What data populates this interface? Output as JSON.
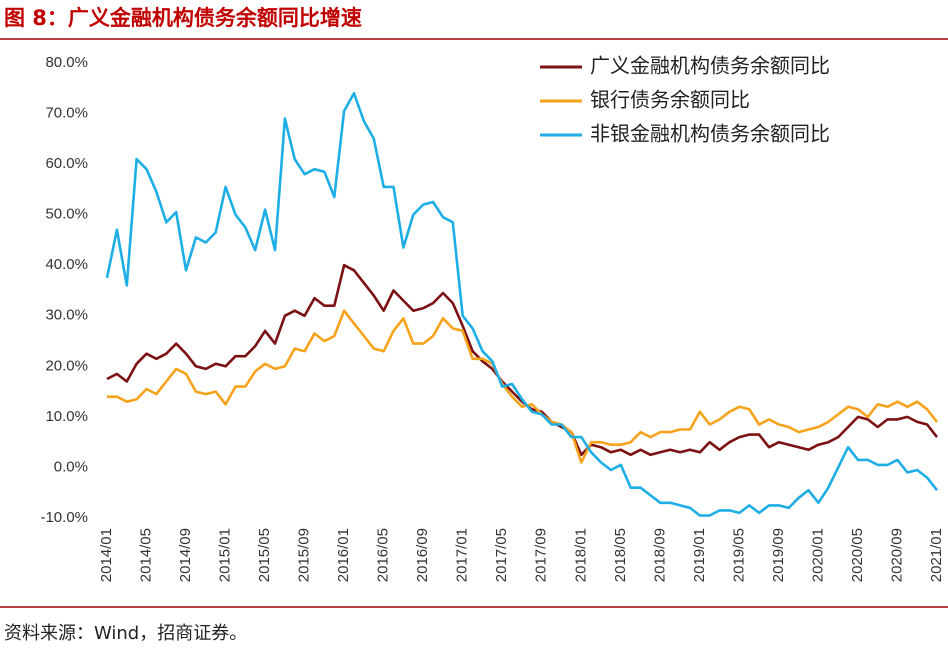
{
  "chart_data": {
    "type": "line",
    "title": "图 8：广义金融机构债务余额同比增速",
    "source": "资料来源：Wind，招商证券。",
    "categories": [
      "2014/01",
      null,
      null,
      null,
      "2014/05",
      null,
      null,
      null,
      "2014/09",
      null,
      null,
      null,
      "2015/01",
      null,
      null,
      null,
      "2015/05",
      null,
      null,
      null,
      "2015/09",
      null,
      null,
      null,
      "2016/01",
      null,
      null,
      null,
      "2016/05",
      null,
      null,
      null,
      "2016/09",
      null,
      null,
      null,
      "2017/01",
      null,
      null,
      null,
      "2017/05",
      null,
      null,
      null,
      "2017/09",
      null,
      null,
      null,
      "2018/01",
      null,
      null,
      null,
      "2018/05",
      null,
      null,
      null,
      "2018/09",
      null,
      null,
      null,
      "2019/01",
      null,
      null,
      null,
      "2019/05",
      null,
      null,
      null,
      "2019/09",
      null,
      null,
      null,
      "2020/01",
      null,
      null,
      null,
      "2020/05",
      null,
      null,
      null,
      "2020/09",
      null,
      null,
      null,
      "2021/01"
    ],
    "series": [
      {
        "name": "广义金融机构债务余额同比",
        "color": "#7b1113",
        "values": [
          17.5,
          18.5,
          17,
          20.5,
          22.5,
          21.5,
          22.5,
          24.5,
          22.5,
          20,
          19.5,
          20.5,
          20,
          22,
          22,
          24,
          27,
          24.5,
          30,
          31,
          30,
          33.5,
          32,
          32,
          40,
          39,
          36.5,
          34,
          31,
          35,
          33,
          31,
          31.5,
          32.5,
          34.5,
          32.5,
          28,
          23,
          21,
          19.5,
          17,
          15,
          13,
          11.5,
          11,
          9,
          8,
          7,
          2.5,
          4.5,
          4,
          3,
          3.5,
          2.5,
          3.5,
          2.5,
          3,
          3.5,
          3,
          3.5,
          3,
          5,
          3.5,
          5,
          6,
          6.5,
          6.5,
          4,
          5,
          4.5,
          4,
          3.5,
          4.5,
          5,
          6,
          8,
          10,
          9.5,
          8,
          9.5,
          9.5,
          10,
          9,
          8.5,
          6
        ]
      },
      {
        "name": "银行债务余额同比",
        "color": "#f7a21b",
        "values": [
          14,
          14,
          13,
          13.5,
          15.5,
          14.5,
          17,
          19.5,
          18.5,
          15,
          14.5,
          15,
          12.5,
          16,
          16,
          19,
          20.5,
          19.5,
          20,
          23.5,
          23,
          26.5,
          25,
          26,
          31,
          28.5,
          26,
          23.5,
          23,
          27,
          29.5,
          24.5,
          24.5,
          26,
          29.5,
          27.5,
          27,
          21.5,
          21.5,
          20.5,
          16.5,
          14,
          12,
          12.5,
          10.5,
          9,
          8.5,
          7,
          1,
          5,
          5,
          4.5,
          4.5,
          5,
          7,
          6,
          7,
          7,
          7.5,
          7.5,
          11,
          8.5,
          9.5,
          11,
          12,
          11.5,
          8.5,
          9.5,
          8.5,
          8,
          7,
          7.5,
          8,
          9,
          10.5,
          12,
          11.5,
          10,
          12.5,
          12,
          13,
          12,
          13,
          11.5,
          9
        ]
      },
      {
        "name": "非银金融机构债务余额同比",
        "color": "#1eaee6",
        "values": [
          37.5,
          47,
          36,
          61,
          59,
          54.5,
          48.5,
          50.5,
          39,
          45.5,
          44.5,
          46.5,
          55.5,
          50,
          47.5,
          43,
          51,
          43,
          69,
          61,
          58,
          59,
          58.5,
          53.5,
          70.5,
          74,
          68.5,
          65,
          55.5,
          55.5,
          43.5,
          50,
          52,
          52.5,
          49.5,
          48.5,
          30,
          27.5,
          23,
          21,
          16,
          16.5,
          13.5,
          11,
          10.5,
          8.5,
          8.5,
          6,
          6,
          3,
          1,
          -0.5,
          0.5,
          -4,
          -4,
          -5.5,
          -7,
          -7,
          -7.5,
          -8,
          -9.5,
          -9.5,
          -8.5,
          -8.5,
          -9,
          -7.5,
          -9,
          -7.5,
          -7.5,
          -8,
          -6,
          -4.5,
          -7,
          -4,
          0,
          4,
          1.5,
          1.5,
          0.5,
          0.5,
          1.5,
          -1,
          -0.5,
          -2,
          -4.5
        ]
      }
    ],
    "ylim": [
      -10,
      80
    ],
    "yticks": [
      {
        "value": -10,
        "label": "-10.0%"
      },
      {
        "value": 0,
        "label": "0.0%"
      },
      {
        "value": 10,
        "label": "10.0%"
      },
      {
        "value": 20,
        "label": "20.0%"
      },
      {
        "value": 30,
        "label": "30.0%"
      },
      {
        "value": 40,
        "label": "40.0%"
      },
      {
        "value": 50,
        "label": "50.0%"
      },
      {
        "value": 60,
        "label": "60.0%"
      },
      {
        "value": 70,
        "label": "70.0%"
      },
      {
        "value": 80,
        "label": "80.0%"
      }
    ],
    "grid": false,
    "legend": "top-right"
  }
}
